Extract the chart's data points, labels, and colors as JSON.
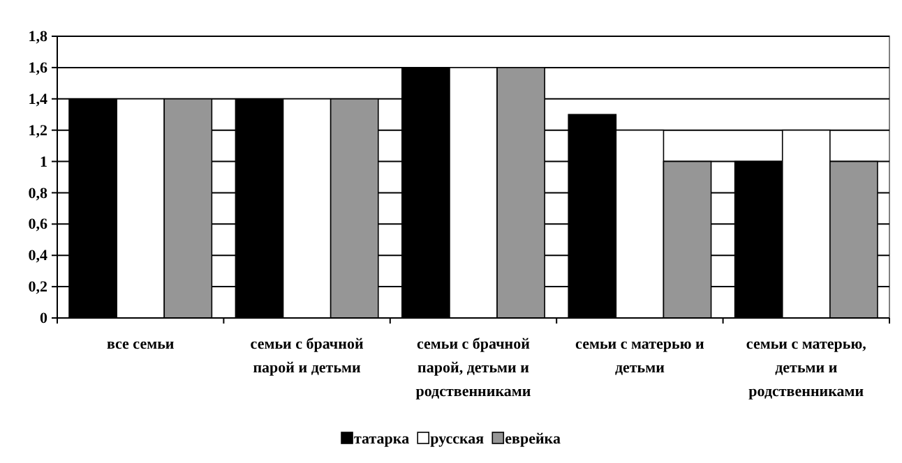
{
  "chart_data": {
    "type": "bar",
    "categories": [
      "все семьи",
      "семьи с брачной парой и детьми",
      "семьи с брачной парой, детьми и родственниками",
      "семьи с матерью и детьми",
      "семьи с матерью, детьми и родственниками"
    ],
    "series": [
      {
        "name": "татарка",
        "color": "#000000",
        "values": [
          1.4,
          1.4,
          1.6,
          1.3,
          1.0
        ]
      },
      {
        "name": "русская",
        "color": "#ffffff",
        "values": [
          1.4,
          1.4,
          1.6,
          1.2,
          1.2
        ]
      },
      {
        "name": "еврейка",
        "color": "#969696",
        "values": [
          1.4,
          1.4,
          1.6,
          1.0,
          1.0
        ]
      }
    ],
    "ylim": [
      0,
      1.8
    ],
    "yticks": [
      {
        "value": 0,
        "label": "0"
      },
      {
        "value": 0.2,
        "label": "0,2"
      },
      {
        "value": 0.4,
        "label": "0,4"
      },
      {
        "value": 0.6,
        "label": "0,6"
      },
      {
        "value": 0.8,
        "label": "0,8"
      },
      {
        "value": 1,
        "label": "1"
      },
      {
        "value": 1.2,
        "label": "1,2"
      },
      {
        "value": 1.4,
        "label": "1,4"
      },
      {
        "value": 1.6,
        "label": "1,6"
      },
      {
        "value": 1.8,
        "label": "1,8"
      }
    ],
    "grid": "y",
    "legend": "bottom"
  }
}
